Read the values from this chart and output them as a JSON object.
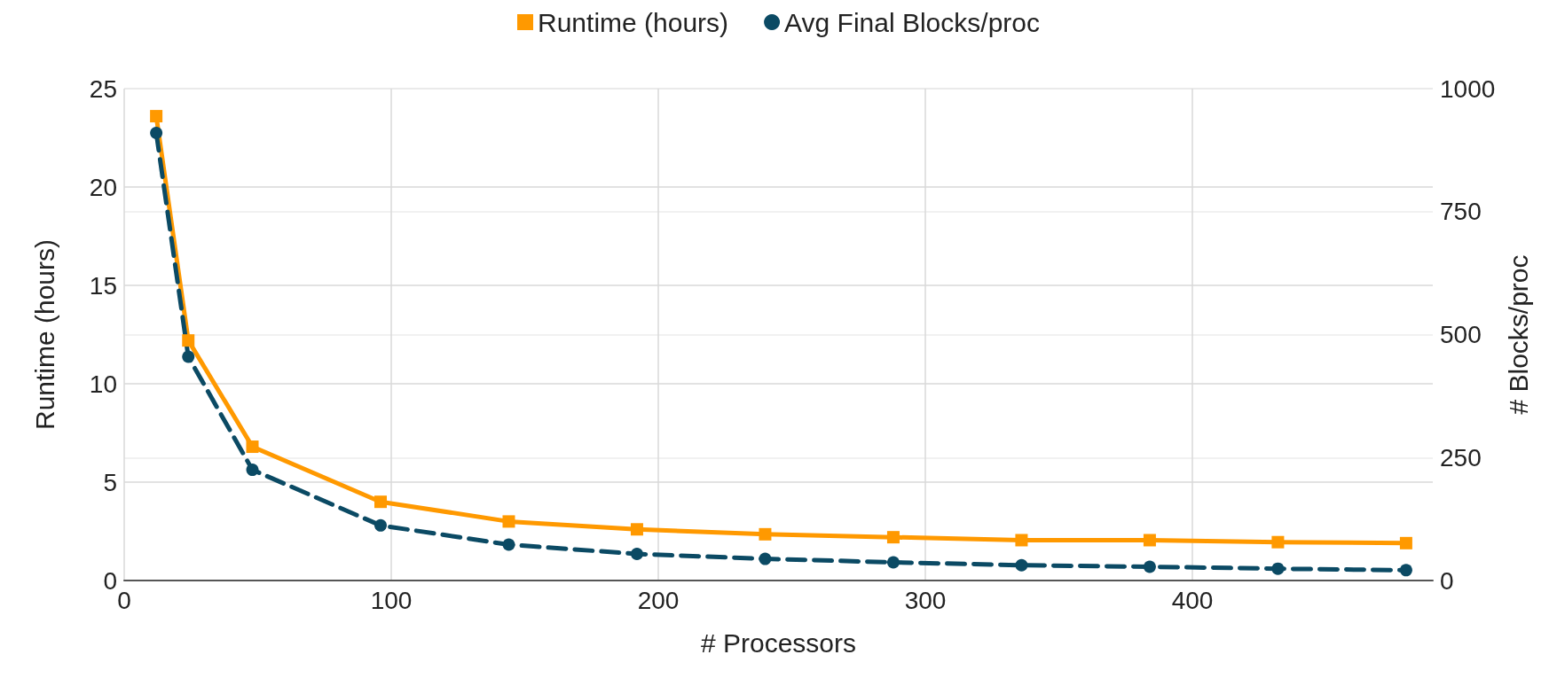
{
  "chart_data": {
    "type": "line",
    "xlabel": "# Processors",
    "ylabel": "Runtime (hours)",
    "y2label": "# Blocks/proc",
    "x": [
      12,
      24,
      48,
      96,
      144,
      192,
      240,
      288,
      336,
      384,
      432,
      480
    ],
    "series": [
      {
        "name": "Runtime (hours)",
        "color": "#ff9900",
        "marker": "square",
        "line_style": "solid",
        "values": [
          23.6,
          12.2,
          6.8,
          4.0,
          3.0,
          2.6,
          2.35,
          2.2,
          2.05,
          2.05,
          1.95,
          1.9
        ]
      },
      {
        "name": "Avg Final Blocks/proc",
        "color": "#0b4a64",
        "marker": "circle",
        "line_style": "dashed",
        "axis": "y2",
        "values": [
          910,
          455,
          225,
          112,
          73,
          54,
          44,
          37,
          31,
          28,
          24,
          21
        ]
      }
    ],
    "xlim": [
      0,
      490
    ],
    "xticks": [
      0,
      100,
      200,
      300,
      400
    ],
    "ylim": [
      0,
      25
    ],
    "yticks": [
      0,
      5,
      10,
      15,
      20,
      25
    ],
    "y2lim": [
      0,
      1000
    ],
    "y2ticks": [
      0,
      250,
      500,
      750,
      1000
    ],
    "grid": true,
    "legend": "top"
  }
}
